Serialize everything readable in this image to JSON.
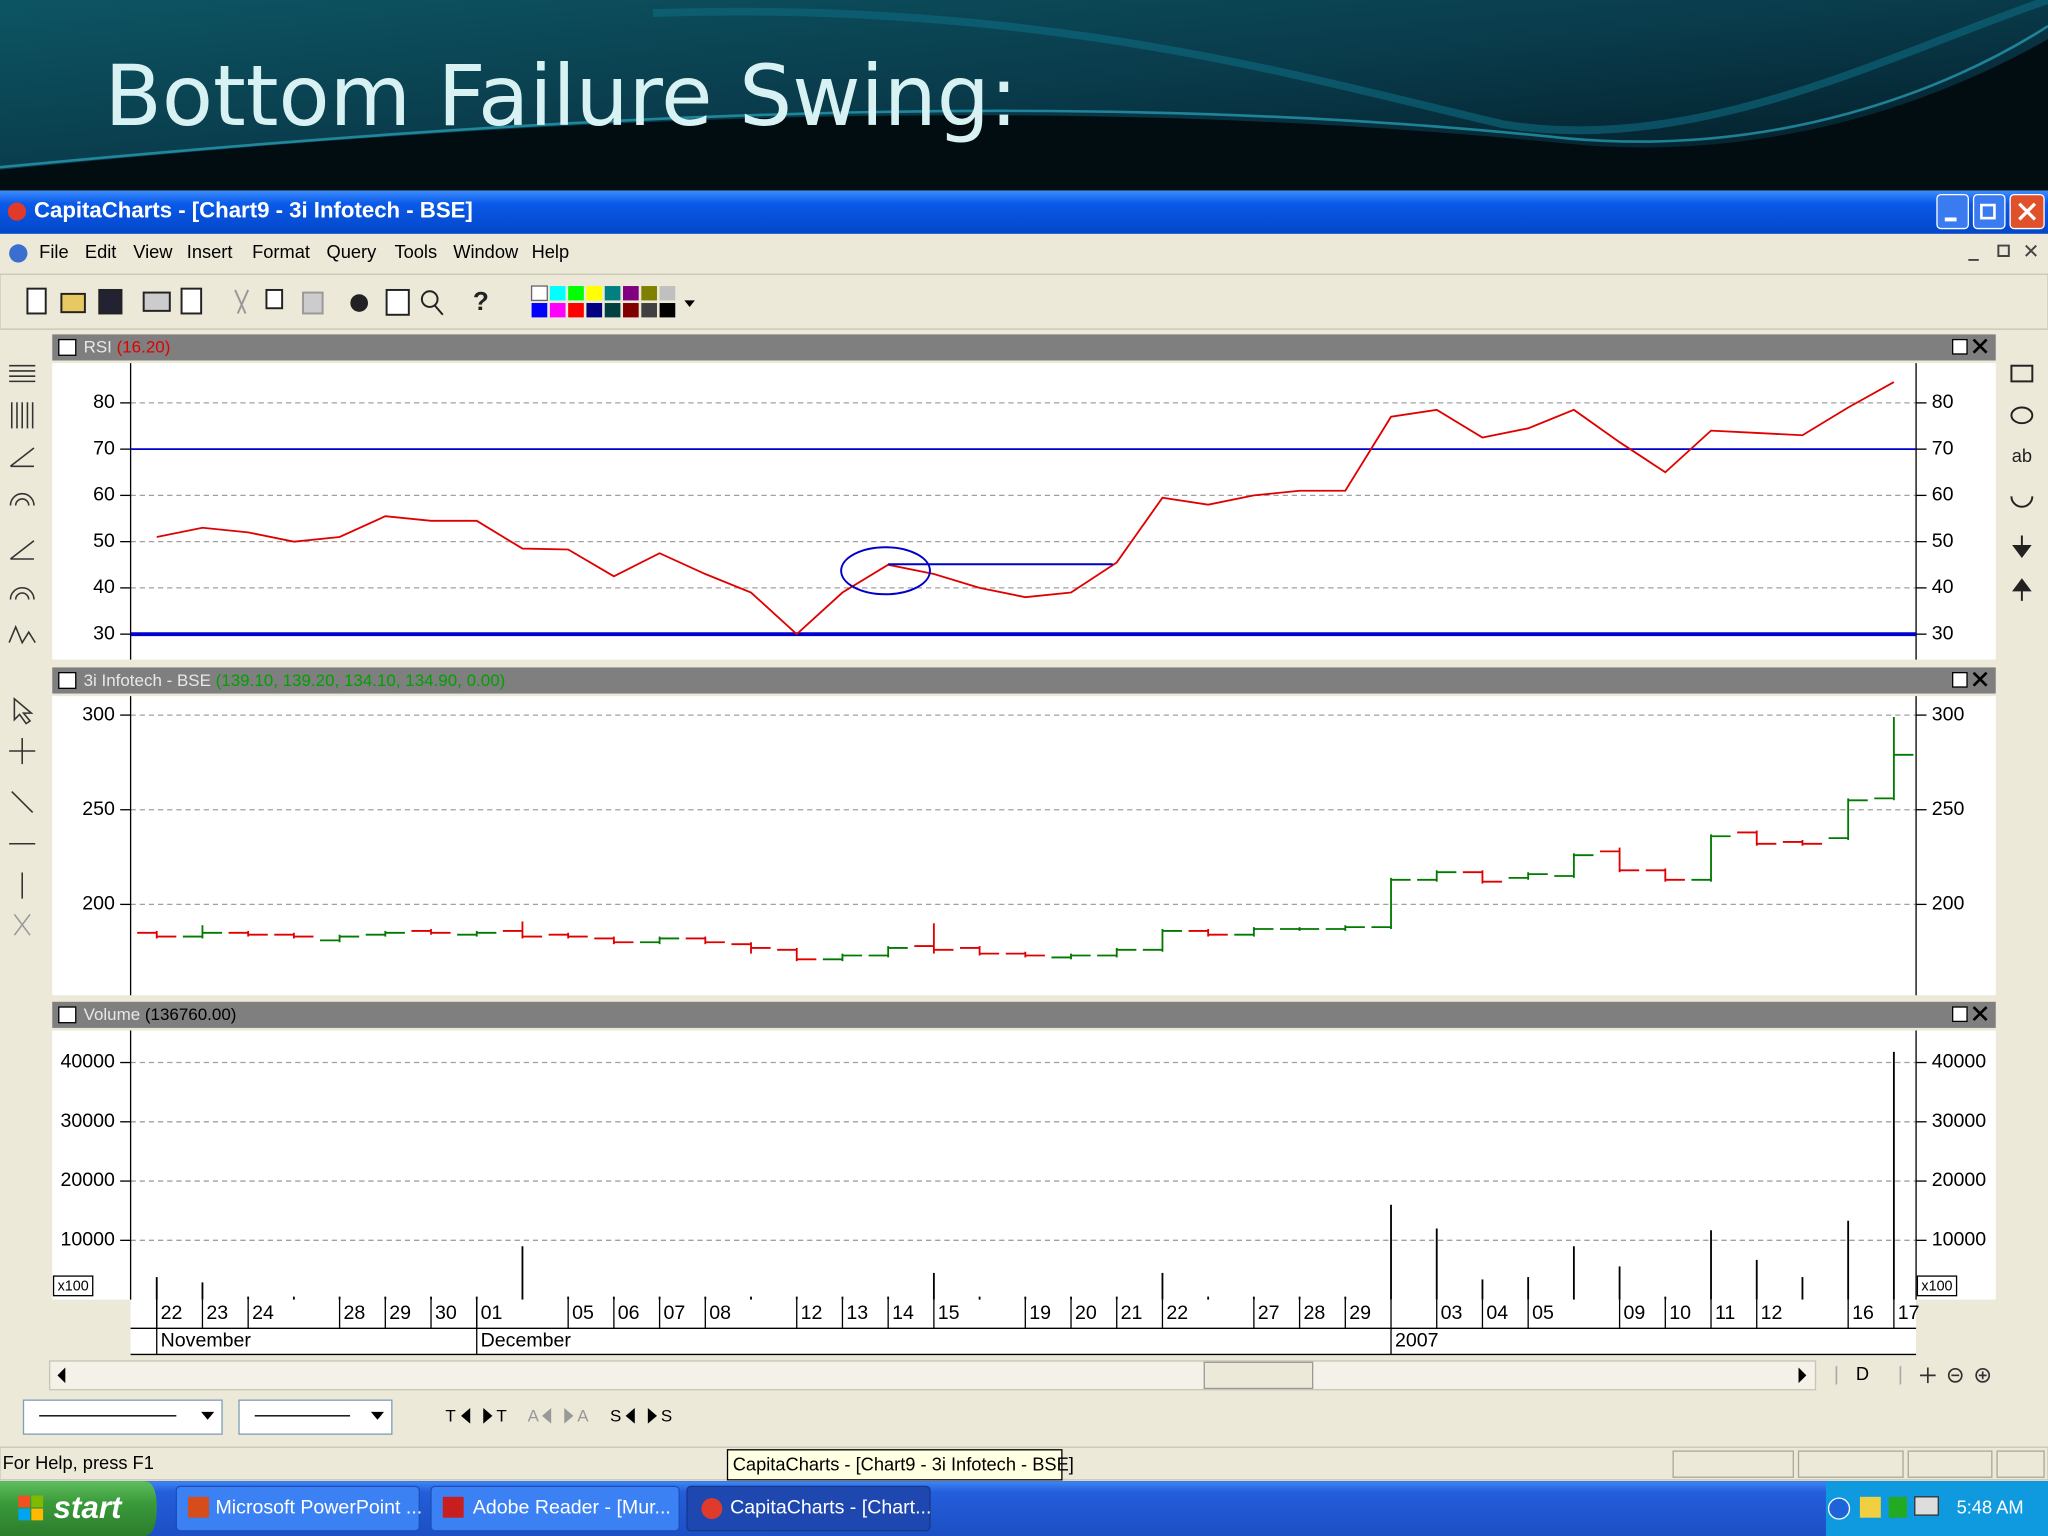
{
  "slide_title": "Bottom Failure Swing:",
  "window": {
    "title": "CapitaCharts - [Chart9 - 3i Infotech - BSE]",
    "menu": [
      "File",
      "Edit",
      "View",
      "Insert",
      "Format",
      "Query",
      "Tools",
      "Window",
      "Help"
    ],
    "status": "For Help, press F1",
    "tooltip": "CapitaCharts - [Chart9 - 3i Infotech - BSE]",
    "tool_labels": [
      "ab",
      "D"
    ],
    "nav_labels": [
      "T",
      "T",
      "A",
      "A",
      "S",
      "S"
    ]
  },
  "taskbar": {
    "start": "start",
    "tasks": [
      "Microsoft PowerPoint ...",
      "Adobe Reader - [Mur...",
      "CapitaCharts - [Chart..."
    ],
    "clock": "5:48 AM"
  },
  "chart_data": [
    {
      "type": "line",
      "title": "RSI",
      "subtitle": "(16.20)",
      "color": "#e00000",
      "values": [
        51,
        53,
        52,
        50,
        51,
        55.5,
        54.5,
        54.5,
        48.5,
        48.3,
        42.5,
        47.5,
        43,
        39,
        30,
        39,
        45,
        43,
        40,
        38,
        39,
        45.5,
        59.5,
        58,
        60,
        61,
        61,
        77,
        78.5,
        72.5,
        74.5,
        78.5,
        71.5,
        65,
        74,
        73.5,
        73,
        79,
        84.5
      ],
      "ylim": [
        24.5,
        88.6
      ],
      "yticks": [
        30,
        40,
        50,
        60,
        70,
        80
      ],
      "grid": true,
      "reference_lines": [
        {
          "value": 70,
          "color": "#0000cc",
          "style": "thin"
        },
        {
          "value": 30,
          "color": "#0000cc",
          "style": "thick"
        }
      ]
    },
    {
      "type": "ohlc",
      "title": "3i Infotech - BSE",
      "subtitle": "(139.10, 139.20, 134.10, 134.90, 0.00)",
      "up_color": "#007a00",
      "down_color": "#e00000",
      "open": [
        185,
        183,
        185,
        184,
        181,
        184,
        186,
        184,
        186,
        184,
        182,
        180,
        182,
        179,
        176,
        171,
        173,
        178,
        177,
        174,
        172,
        173,
        176,
        186,
        184,
        187,
        187,
        188,
        213,
        217,
        214,
        215,
        228,
        218,
        213,
        238,
        233,
        235,
        256
      ],
      "high": [
        186,
        189,
        186,
        185,
        184,
        186,
        187,
        186,
        191,
        185,
        183,
        183,
        183,
        180,
        177,
        174,
        178,
        190,
        178,
        175,
        174,
        177,
        187,
        187,
        188,
        188,
        189,
        214,
        218,
        218,
        217,
        227,
        230,
        219,
        237,
        239,
        234,
        256,
        299
      ],
      "low": [
        182,
        182,
        183,
        182,
        180,
        183,
        184,
        183,
        182,
        182,
        179,
        179,
        179,
        174,
        170,
        170,
        172,
        174,
        173,
        172,
        171,
        172,
        175,
        183,
        183,
        186,
        186,
        187,
        212,
        211,
        213,
        214,
        217,
        212,
        212,
        231,
        231,
        234,
        255
      ],
      "close": [
        183,
        185,
        184,
        183,
        183,
        185,
        185,
        185,
        183,
        183,
        180,
        182,
        180,
        177,
        171,
        173,
        177,
        176,
        174,
        173,
        173,
        176,
        186,
        184,
        187,
        187,
        188,
        213,
        217,
        212,
        216,
        226,
        218,
        213,
        236,
        232,
        232,
        255,
        279
      ],
      "ylim": [
        152,
        310
      ],
      "yticks": [
        200,
        250,
        300
      ],
      "grid": true
    },
    {
      "type": "bar",
      "title": "Volume",
      "subtitle": "(136760.00)",
      "scale_label": "x100",
      "color": "#000000",
      "categories": [
        "22",
        "23",
        "24",
        null,
        "28",
        "29",
        "30",
        "01",
        null,
        "05",
        "06",
        "07",
        "08",
        null,
        "12",
        "13",
        "14",
        "15",
        null,
        "19",
        "20",
        "21",
        "22",
        null,
        "27",
        "28",
        "29",
        null,
        "03",
        "04",
        "05",
        null,
        "09",
        "10",
        "11",
        "12",
        null,
        "16",
        "17"
      ],
      "months": [
        "November",
        "December",
        "2007"
      ],
      "values": [
        3800,
        2900,
        500,
        500,
        500,
        500,
        500,
        500,
        9000,
        500,
        500,
        500,
        500,
        500,
        500,
        500,
        500,
        4500,
        500,
        500,
        500,
        500,
        4500,
        500,
        500,
        500,
        500,
        16000,
        12000,
        3400,
        3800,
        9000,
        5600,
        500,
        11700,
        6700,
        3800,
        13300,
        41800
      ],
      "ylim": [
        0,
        45400
      ],
      "yticks": [
        10000,
        20000,
        30000,
        40000
      ],
      "grid": true
    }
  ]
}
